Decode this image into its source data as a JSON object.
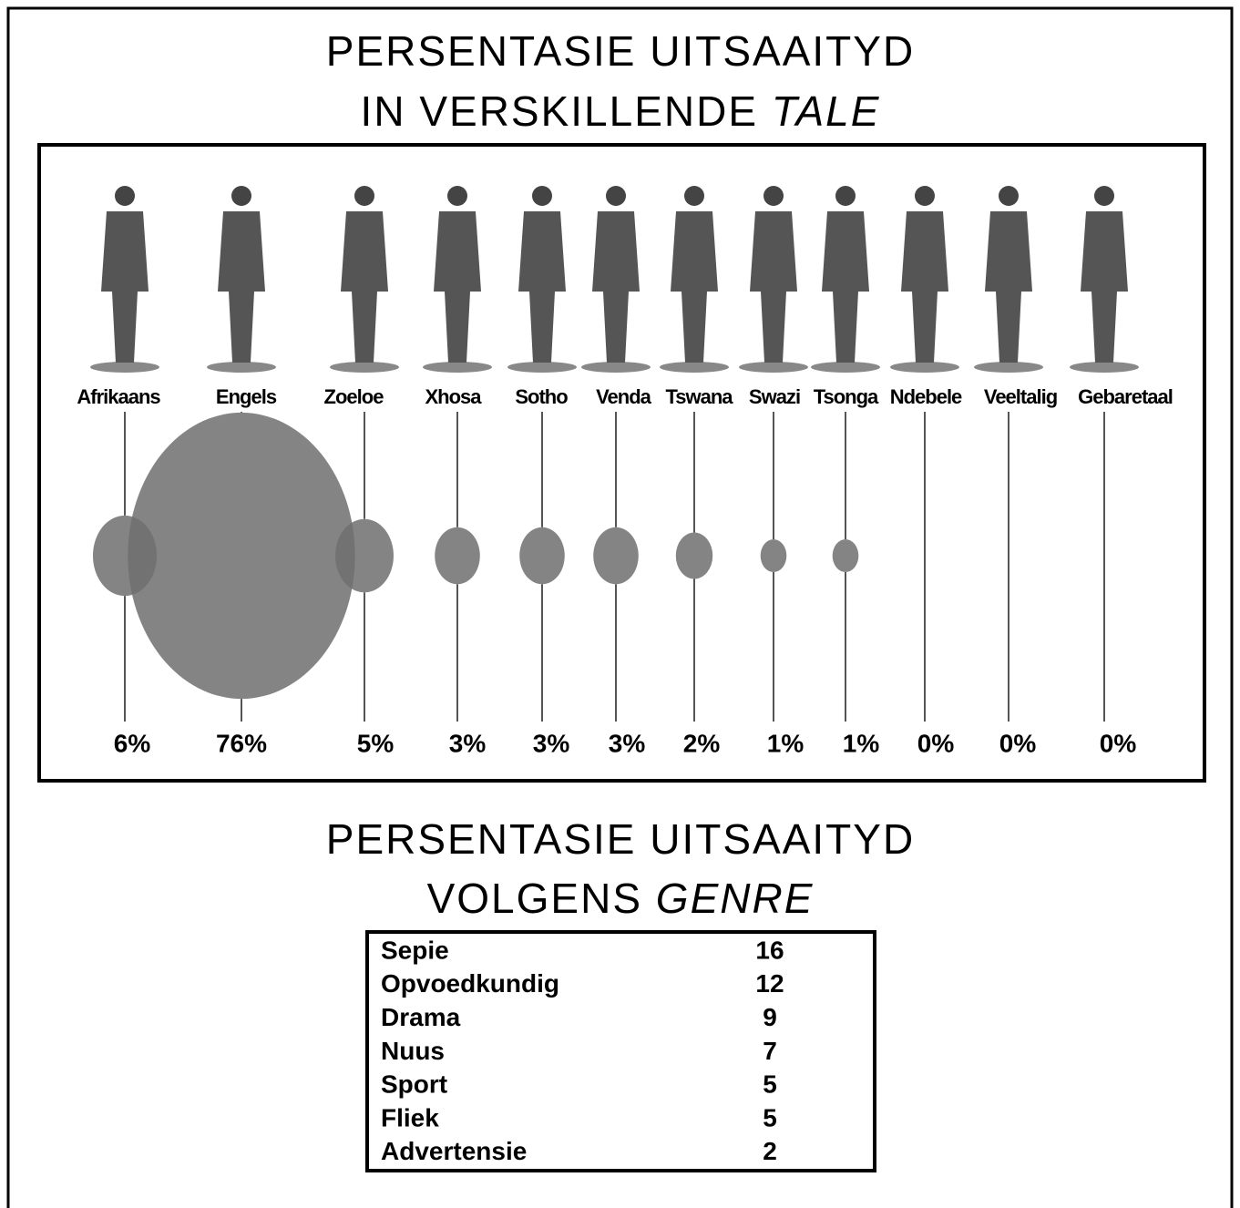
{
  "chart_data": {
    "type": "bubble",
    "title": {
      "line1": "PERSENTASIE UITSAAITYD",
      "line2": "IN VERSKILLENDE",
      "line2_italic": "TALE"
    },
    "categories": [
      "Afrikaans",
      "Engels",
      "Zoeloe",
      "Xhosa",
      "Sotho",
      "Venda",
      "Tswana",
      "Swazi",
      "Tsonga",
      "Ndebele",
      "Veeltalig",
      "Gebaretaal"
    ],
    "values": [
      6,
      76,
      5,
      3,
      3,
      3,
      2,
      1,
      1,
      0,
      0,
      0
    ],
    "value_labels": [
      "6%",
      "76%",
      "5%",
      "3%",
      "3%",
      "3%",
      "2%",
      "1%",
      "1%",
      "0%",
      "0%",
      "0%"
    ],
    "color": "#6e6e6e"
  },
  "table": {
    "title": {
      "line1": "PERSENTASIE UITSAAITYD",
      "line2": "VOLGENS",
      "line2_italic": "GENRE"
    },
    "rows": [
      [
        "Sepie",
        "16"
      ],
      [
        "Opvoedkundig",
        "12"
      ],
      [
        "Drama",
        "9"
      ],
      [
        "Nuus",
        "7"
      ],
      [
        "Sport",
        "5"
      ],
      [
        "Fliek",
        "5"
      ],
      [
        "Advertensie",
        "2"
      ]
    ]
  }
}
